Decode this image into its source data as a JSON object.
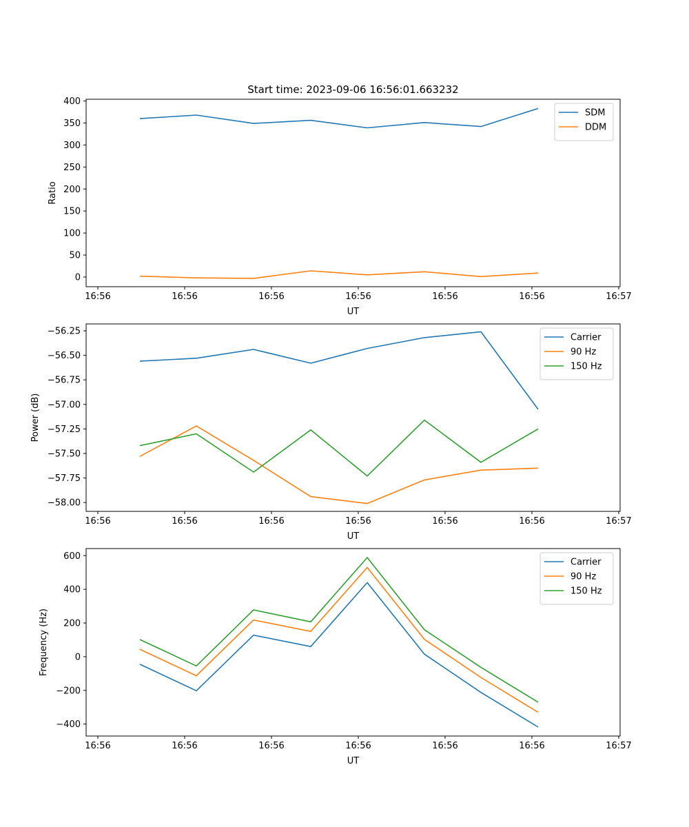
{
  "chart_data": [
    {
      "type": "line",
      "title": "Start time: 2023-09-06 16:56:01.663232",
      "xlabel": "UT",
      "ylabel": "Ratio",
      "x_tick_labels": [
        "16:56",
        "16:56",
        "16:56",
        "16:56",
        "16:56",
        "16:56",
        "16:56",
        "16:57"
      ],
      "ylim": [
        -22,
        404
      ],
      "y_ticks": [
        0,
        50,
        100,
        150,
        200,
        250,
        300,
        350,
        400
      ],
      "legend_position": "top-right",
      "grid": false,
      "series": [
        {
          "name": "SDM",
          "color": "#1f77b4",
          "values": [
            360,
            368,
            349,
            356,
            339,
            351,
            342,
            383
          ]
        },
        {
          "name": "DDM",
          "color": "#ff7f0e",
          "values": [
            2,
            -2,
            -3,
            14,
            5,
            12,
            1,
            9
          ]
        }
      ]
    },
    {
      "type": "line",
      "title": "",
      "xlabel": "UT",
      "ylabel": "Power (dB)",
      "x_tick_labels": [
        "16:56",
        "16:56",
        "16:56",
        "16:56",
        "16:56",
        "16:56",
        "16:56",
        "16:57"
      ],
      "ylim": [
        -58.09,
        -56.18
      ],
      "y_ticks": [
        -56.25,
        -56.5,
        -56.75,
        -57.0,
        -57.25,
        -57.5,
        -57.75,
        -58.0
      ],
      "y_tick_labels": [
        "−56.25",
        "−56.50",
        "−56.75",
        "−57.00",
        "−57.25",
        "−57.50",
        "−57.75",
        "−58.00"
      ],
      "legend_position": "top-right",
      "grid": false,
      "series": [
        {
          "name": "Carrier",
          "color": "#1f77b4",
          "values": [
            -56.56,
            -56.53,
            -56.44,
            -56.58,
            -56.43,
            -56.32,
            -56.26,
            -57.05
          ]
        },
        {
          "name": "90 Hz",
          "color": "#ff7f0e",
          "values": [
            -57.53,
            -57.22,
            -57.57,
            -57.94,
            -58.01,
            -57.77,
            -57.67,
            -57.65
          ]
        },
        {
          "name": "150 Hz",
          "color": "#2ca02c",
          "values": [
            -57.42,
            -57.3,
            -57.69,
            -57.26,
            -57.73,
            -57.16,
            -57.59,
            -57.25
          ]
        }
      ]
    },
    {
      "type": "line",
      "title": "",
      "xlabel": "UT",
      "ylabel": "Frequency (Hz)",
      "x_tick_labels": [
        "16:56",
        "16:56",
        "16:56",
        "16:56",
        "16:56",
        "16:56",
        "16:56",
        "16:57"
      ],
      "ylim": [
        -471,
        642
      ],
      "y_ticks": [
        -400,
        -200,
        0,
        200,
        400,
        600
      ],
      "y_tick_labels": [
        "−400",
        "−200",
        "0",
        "200",
        "400",
        "600"
      ],
      "legend_position": "top-right",
      "grid": false,
      "series": [
        {
          "name": "Carrier",
          "color": "#1f77b4",
          "values": [
            -45,
            -202,
            128,
            60,
            440,
            15,
            -212,
            -418
          ]
        },
        {
          "name": "90 Hz",
          "color": "#ff7f0e",
          "values": [
            44,
            -113,
            218,
            150,
            530,
            103,
            -123,
            -330
          ]
        },
        {
          "name": "150 Hz",
          "color": "#2ca02c",
          "values": [
            102,
            -55,
            278,
            207,
            589,
            160,
            -63,
            -270
          ]
        }
      ]
    }
  ]
}
